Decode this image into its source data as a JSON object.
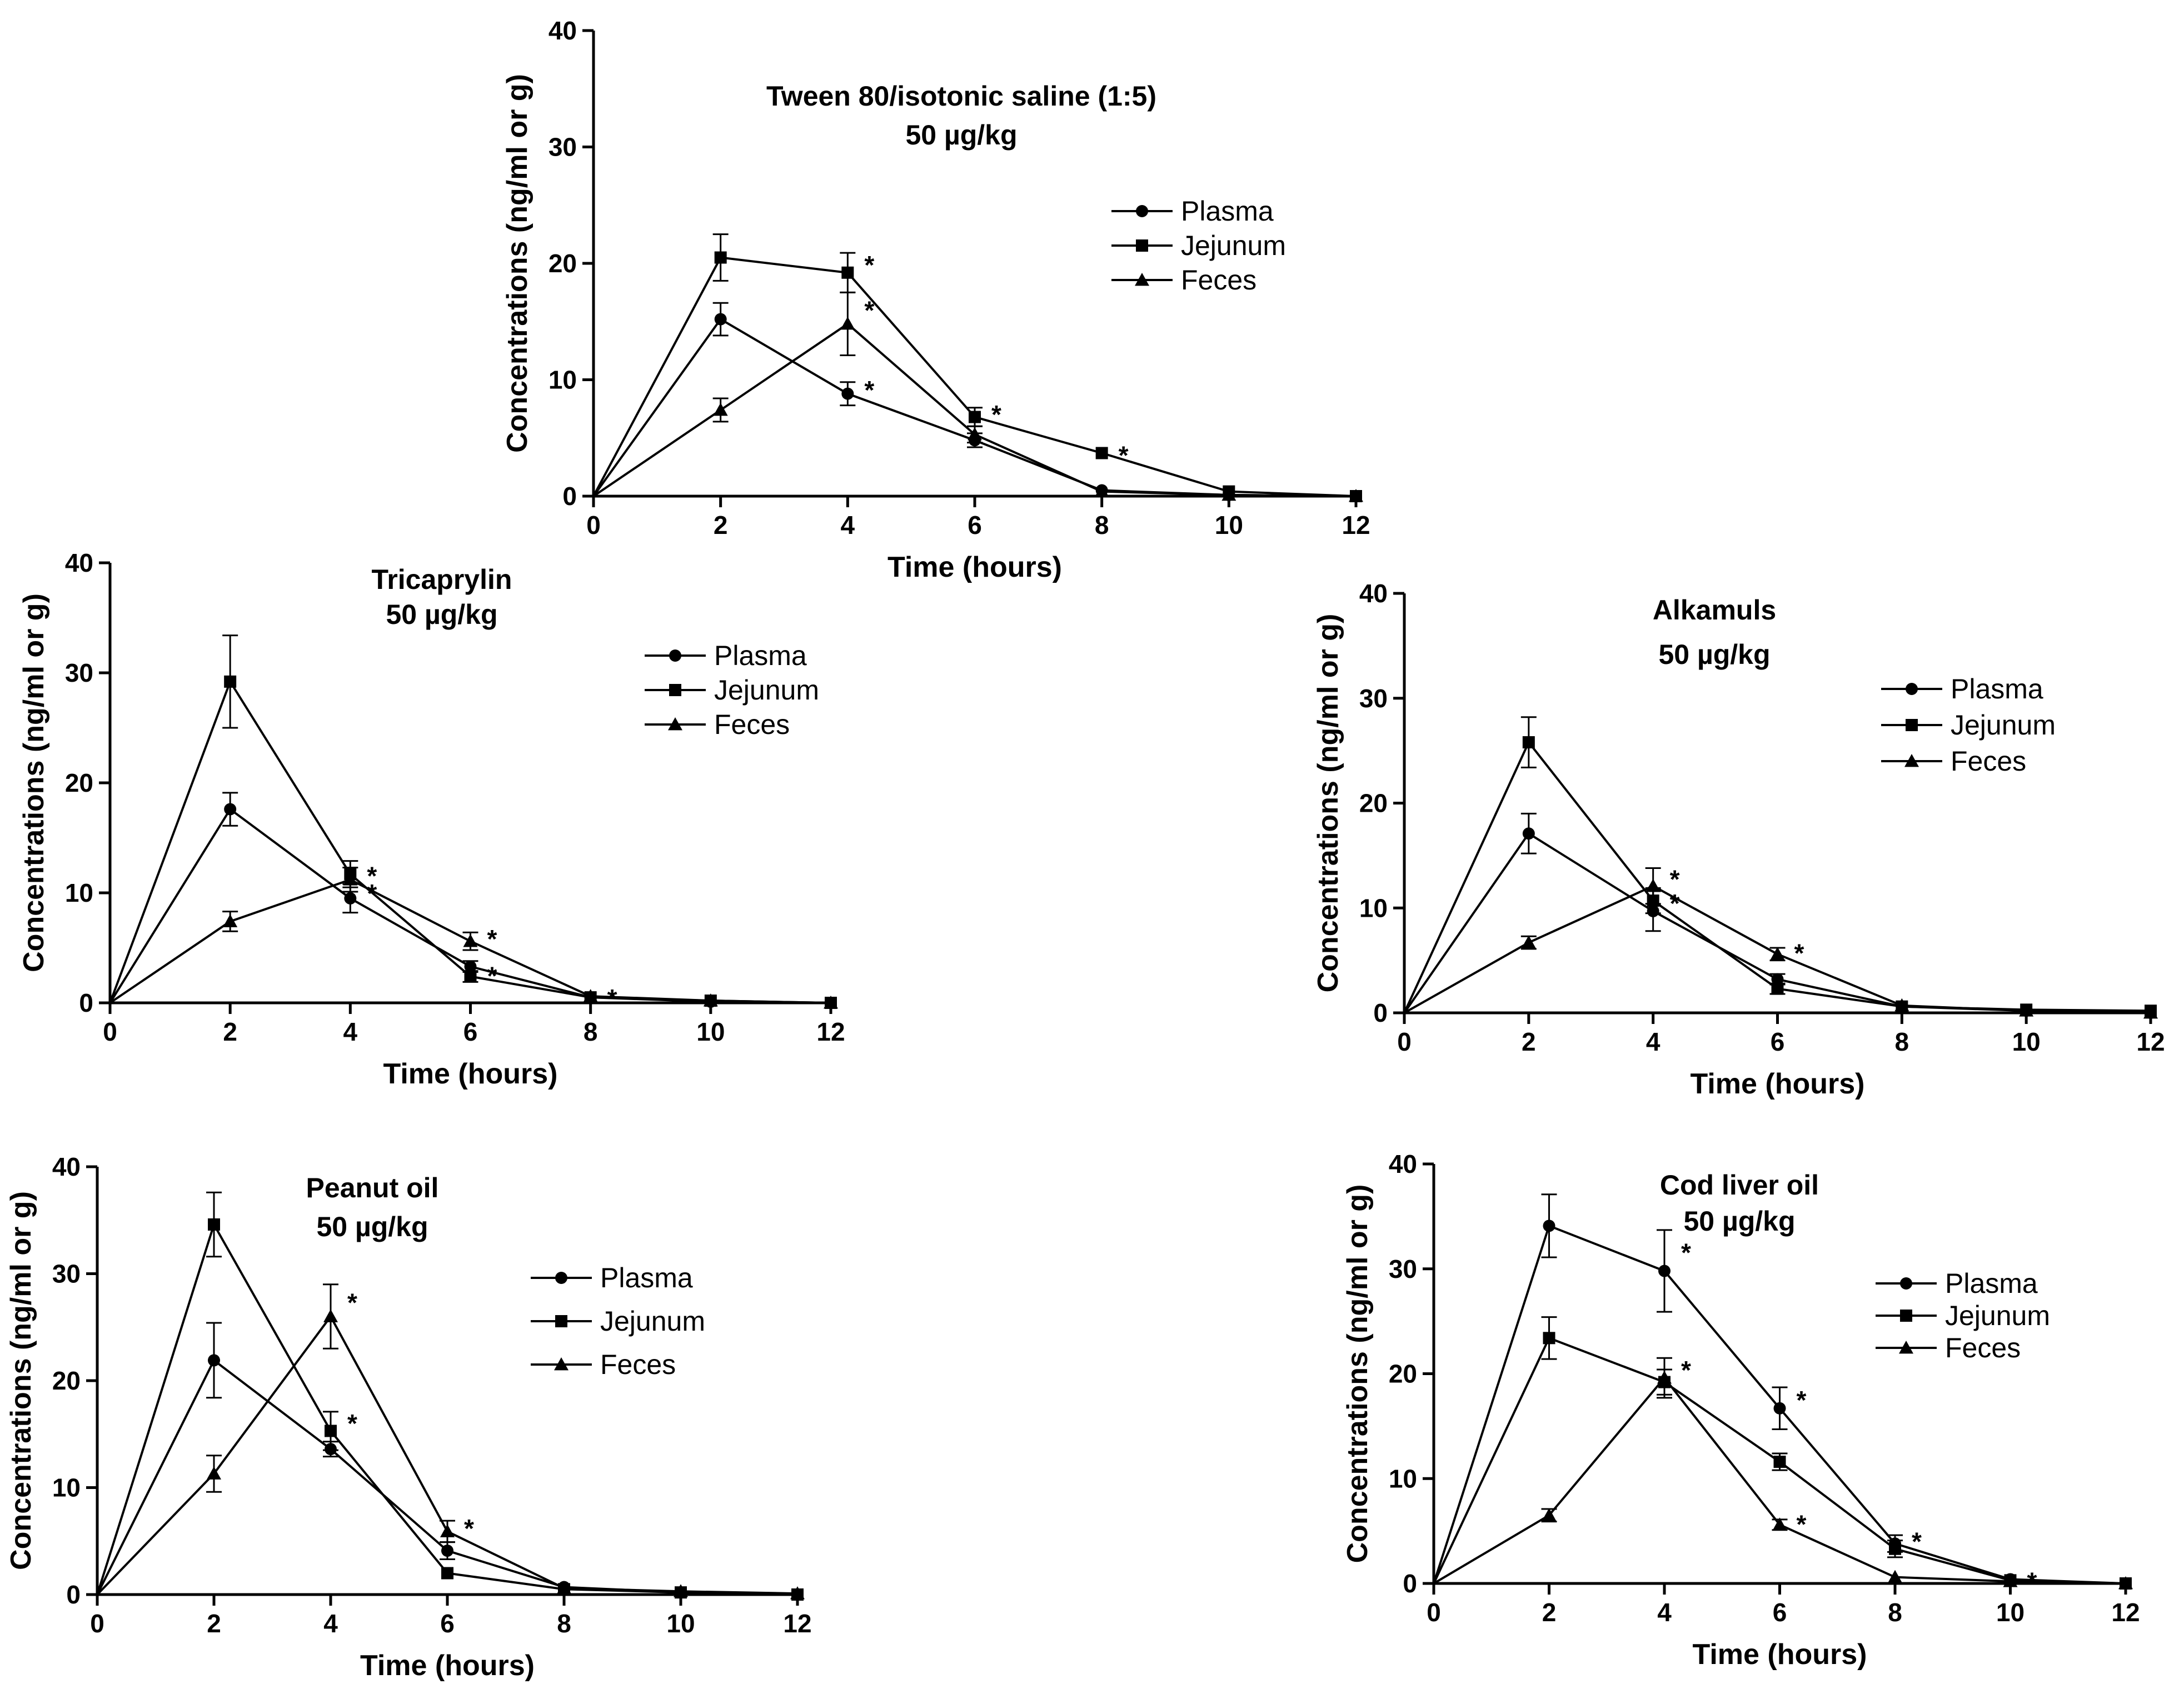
{
  "chart_data": [
    {
      "type": "line",
      "title": "Tween 80/isotonic saline (1:5)",
      "subtitle": "50 µg/kg",
      "xlabel": "Time (hours)",
      "ylabel": "Concentrations (ng/ml or g)",
      "xlim": [
        0,
        12
      ],
      "ylim": [
        0,
        40
      ],
      "x_ticks": [
        "0",
        "2",
        "4",
        "6",
        "8",
        "10",
        "12"
      ],
      "y_ticks": [
        "0",
        "10",
        "20",
        "30",
        "40"
      ],
      "x": [
        0,
        2,
        4,
        6,
        8,
        10,
        12
      ],
      "legend_position": "right",
      "series": [
        {
          "name": "Plasma",
          "marker": "circle",
          "values": [
            0,
            15.2,
            8.8,
            4.8,
            0.5,
            0.1,
            0
          ],
          "errors": [
            0,
            1.4,
            1.0,
            0.6,
            0,
            0,
            0
          ],
          "sig_at": [
            4
          ]
        },
        {
          "name": "Jejunum",
          "marker": "square",
          "values": [
            0,
            20.5,
            19.2,
            6.8,
            3.7,
            0.4,
            0
          ],
          "errors": [
            0,
            2.0,
            1.7,
            0.8,
            0,
            0,
            0
          ],
          "sig_at": [
            4,
            6,
            8
          ]
        },
        {
          "name": "Feces",
          "marker": "triangle",
          "values": [
            0,
            7.4,
            14.8,
            5.3,
            0.4,
            0.1,
            0
          ],
          "errors": [
            0,
            1.0,
            2.7,
            0.7,
            0,
            0,
            0
          ],
          "sig_at": [
            4
          ]
        }
      ]
    },
    {
      "type": "line",
      "title": "Tricaprylin",
      "subtitle": "50 µg/kg",
      "xlabel": "Time (hours)",
      "ylabel": "Concentrations (ng/ml or g)",
      "xlim": [
        0,
        12
      ],
      "ylim": [
        0,
        40
      ],
      "x_ticks": [
        "0",
        "2",
        "4",
        "6",
        "8",
        "10",
        "12"
      ],
      "y_ticks": [
        "0",
        "10",
        "20",
        "30",
        "40"
      ],
      "x": [
        0,
        2,
        4,
        6,
        8,
        10,
        12
      ],
      "legend_position": "right",
      "series": [
        {
          "name": "Plasma",
          "marker": "circle",
          "values": [
            0,
            17.6,
            9.5,
            3.3,
            0.5,
            0.1,
            0
          ],
          "errors": [
            0,
            1.5,
            1.3,
            0.5,
            0,
            0,
            0
          ],
          "sig_at": [
            4
          ]
        },
        {
          "name": "Jejunum",
          "marker": "square",
          "values": [
            0,
            29.2,
            11.7,
            2.4,
            0.5,
            0.2,
            0
          ],
          "errors": [
            0,
            4.2,
            1.2,
            0.5,
            0,
            0,
            0
          ],
          "sig_at": [
            6
          ]
        },
        {
          "name": "Feces",
          "marker": "triangle",
          "values": [
            0,
            7.4,
            11.2,
            5.6,
            0.6,
            0.2,
            0
          ],
          "errors": [
            0,
            0.9,
            1.1,
            0.8,
            0,
            0,
            0
          ],
          "sig_at": [
            4,
            6,
            8
          ]
        }
      ]
    },
    {
      "type": "line",
      "title": "Alkamuls",
      "subtitle": "50 µg/kg",
      "xlabel": "Time (hours)",
      "ylabel": "Concentrations (ng/ml or g)",
      "xlim": [
        0,
        12
      ],
      "ylim": [
        0,
        40
      ],
      "x_ticks": [
        "0",
        "2",
        "4",
        "6",
        "8",
        "10",
        "12"
      ],
      "y_ticks": [
        "0",
        "10",
        "20",
        "30",
        "40"
      ],
      "x": [
        0,
        2,
        4,
        6,
        8,
        10,
        12
      ],
      "legend_position": "right",
      "series": [
        {
          "name": "Plasma",
          "marker": "circle",
          "values": [
            0,
            17.1,
            9.7,
            3.2,
            0.6,
            0.2,
            0
          ],
          "errors": [
            0,
            1.9,
            1.9,
            0.5,
            0,
            0,
            0
          ],
          "sig_at": [
            4
          ]
        },
        {
          "name": "Jejunum",
          "marker": "square",
          "values": [
            0,
            25.8,
            10.7,
            2.3,
            0.6,
            0.3,
            0.2
          ],
          "errors": [
            0,
            2.4,
            1.2,
            0.5,
            0,
            0,
            0
          ],
          "sig_at": []
        },
        {
          "name": "Feces",
          "marker": "triangle",
          "values": [
            0,
            6.7,
            12.1,
            5.6,
            0.7,
            0.2,
            0
          ],
          "errors": [
            0,
            0.6,
            1.7,
            0.6,
            0,
            0,
            0
          ],
          "sig_at": [
            4,
            6
          ]
        }
      ]
    },
    {
      "type": "line",
      "title": "Peanut oil",
      "subtitle": "50 µg/kg",
      "xlabel": "Time (hours)",
      "ylabel": "Concentrations (ng/ml or g)",
      "xlim": [
        0,
        12
      ],
      "ylim": [
        0,
        40
      ],
      "x_ticks": [
        "0",
        "2",
        "4",
        "6",
        "8",
        "10",
        "12"
      ],
      "y_ticks": [
        "0",
        "10",
        "20",
        "30",
        "40"
      ],
      "x": [
        0,
        2,
        4,
        6,
        8,
        10,
        12
      ],
      "legend_position": "right",
      "series": [
        {
          "name": "Plasma",
          "marker": "circle",
          "values": [
            0,
            21.9,
            13.6,
            4.1,
            0.7,
            0.2,
            0
          ],
          "errors": [
            0,
            3.5,
            0.7,
            0.8,
            0,
            0,
            0
          ],
          "sig_at": []
        },
        {
          "name": "Jejunum",
          "marker": "square",
          "values": [
            0,
            34.6,
            15.3,
            2.0,
            0.5,
            0.2,
            0
          ],
          "errors": [
            0,
            3.0,
            1.8,
            0,
            0,
            0,
            0
          ],
          "sig_at": [
            4
          ]
        },
        {
          "name": "Feces",
          "marker": "triangle",
          "values": [
            0,
            11.3,
            26.0,
            5.9,
            0.6,
            0.3,
            0.1
          ],
          "errors": [
            0,
            1.7,
            3.0,
            1.0,
            0,
            0,
            0
          ],
          "sig_at": [
            4,
            6
          ]
        }
      ]
    },
    {
      "type": "line",
      "title": "Cod liver oil",
      "subtitle": "50 µg/kg",
      "xlabel": "Time (hours)",
      "ylabel": "Concentrations (ng/ml or g)",
      "xlim": [
        0,
        12
      ],
      "ylim": [
        0,
        40
      ],
      "x_ticks": [
        "0",
        "2",
        "4",
        "6",
        "8",
        "10",
        "12"
      ],
      "y_ticks": [
        "0",
        "10",
        "20",
        "30",
        "40"
      ],
      "x": [
        0,
        2,
        4,
        6,
        8,
        10,
        12
      ],
      "legend_position": "right",
      "series": [
        {
          "name": "Plasma",
          "marker": "circle",
          "values": [
            0,
            34.1,
            29.8,
            16.7,
            3.8,
            0.4,
            0
          ],
          "errors": [
            0,
            3.0,
            3.9,
            2.0,
            0.8,
            0,
            0
          ],
          "sig_at": [
            4,
            6,
            8,
            10
          ]
        },
        {
          "name": "Jejunum",
          "marker": "square",
          "values": [
            0,
            23.4,
            19.2,
            11.6,
            3.3,
            0.3,
            0
          ],
          "errors": [
            0,
            2.0,
            1.2,
            0.8,
            0.8,
            0,
            0
          ],
          "sig_at": []
        },
        {
          "name": "Feces",
          "marker": "triangle",
          "values": [
            0,
            6.5,
            19.6,
            5.6,
            0.6,
            0.2,
            0
          ],
          "errors": [
            0,
            0.6,
            1.9,
            0.5,
            0,
            0,
            0
          ],
          "sig_at": [
            4,
            6
          ]
        }
      ]
    }
  ],
  "significance_mark": "*"
}
